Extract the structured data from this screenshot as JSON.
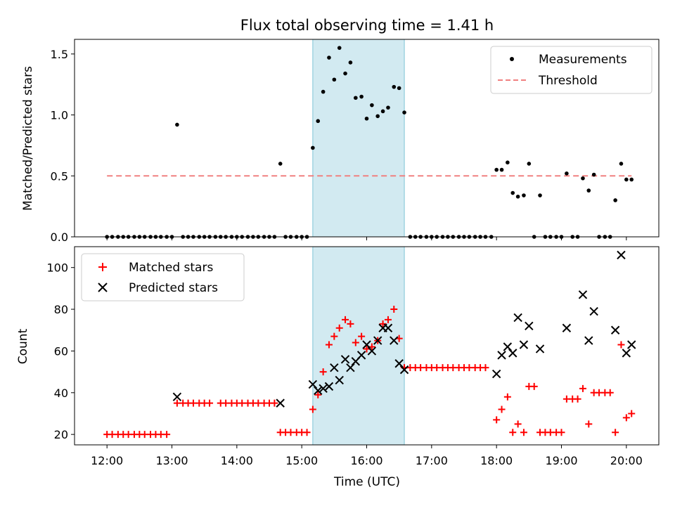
{
  "chart_data": {
    "type": "scatter",
    "title": "Flux total observing time = 1.41 h",
    "xlabel": "Time (UTC)",
    "x_unit": "hours UTC",
    "xlim": [
      11.5,
      20.5
    ],
    "x_ticks": [
      12,
      13,
      14,
      15,
      16,
      17,
      18,
      19,
      20
    ],
    "x_tick_labels": [
      "12:00",
      "13:00",
      "14:00",
      "15:00",
      "16:00",
      "17:00",
      "18:00",
      "19:00",
      "20:00"
    ],
    "shaded_region": {
      "x": [
        15.17,
        16.58
      ],
      "color": "#add8e6"
    },
    "panels": [
      {
        "ylabel": "Matched/Predicted stars",
        "ylim": [
          0,
          1.62
        ],
        "y_ticks": [
          0,
          0.5,
          1.0,
          1.5
        ],
        "y_tick_labels": [
          "0.0",
          "0.5",
          "1.0",
          "1.5"
        ],
        "legend_position": "top-right",
        "series": [
          {
            "name": "Measurements",
            "marker": "dot",
            "color": "#000000",
            "points": [
              [
                12,
                0
              ],
              [
                12.08,
                0
              ],
              [
                12.17,
                0
              ],
              [
                12.25,
                0
              ],
              [
                12.33,
                0
              ],
              [
                12.42,
                0
              ],
              [
                12.5,
                0
              ],
              [
                12.58,
                0
              ],
              [
                12.67,
                0
              ],
              [
                12.75,
                0
              ],
              [
                12.83,
                0
              ],
              [
                12.92,
                0
              ],
              [
                13,
                0
              ],
              [
                13.08,
                0.92
              ],
              [
                13.17,
                0
              ],
              [
                13.25,
                0
              ],
              [
                13.33,
                0
              ],
              [
                13.42,
                0
              ],
              [
                13.5,
                0
              ],
              [
                13.58,
                0
              ],
              [
                13.67,
                0
              ],
              [
                13.75,
                0
              ],
              [
                13.83,
                0
              ],
              [
                13.92,
                0
              ],
              [
                14,
                0
              ],
              [
                14.08,
                0
              ],
              [
                14.17,
                0
              ],
              [
                14.25,
                0
              ],
              [
                14.33,
                0
              ],
              [
                14.42,
                0
              ],
              [
                14.5,
                0
              ],
              [
                14.58,
                0
              ],
              [
                14.67,
                0.6
              ],
              [
                14.75,
                0
              ],
              [
                14.83,
                0
              ],
              [
                14.92,
                0
              ],
              [
                15,
                0
              ],
              [
                15.08,
                0
              ],
              [
                15.17,
                0.73
              ],
              [
                15.25,
                0.95
              ],
              [
                15.33,
                1.19
              ],
              [
                15.42,
                1.47
              ],
              [
                15.5,
                1.29
              ],
              [
                15.58,
                1.55
              ],
              [
                15.67,
                1.34
              ],
              [
                15.75,
                1.43
              ],
              [
                15.83,
                1.14
              ],
              [
                15.92,
                1.15
              ],
              [
                16,
                0.97
              ],
              [
                16.08,
                1.08
              ],
              [
                16.17,
                0.99
              ],
              [
                16.25,
                1.03
              ],
              [
                16.33,
                1.06
              ],
              [
                16.42,
                1.23
              ],
              [
                16.5,
                1.22
              ],
              [
                16.58,
                1.02
              ],
              [
                16.67,
                0
              ],
              [
                16.75,
                0
              ],
              [
                16.83,
                0
              ],
              [
                16.92,
                0
              ],
              [
                17,
                0
              ],
              [
                17.08,
                0
              ],
              [
                17.17,
                0
              ],
              [
                17.25,
                0
              ],
              [
                17.33,
                0
              ],
              [
                17.42,
                0
              ],
              [
                17.5,
                0
              ],
              [
                17.58,
                0
              ],
              [
                17.67,
                0
              ],
              [
                17.75,
                0
              ],
              [
                17.83,
                0
              ],
              [
                17.92,
                0
              ],
              [
                18,
                0.55
              ],
              [
                18.08,
                0.55
              ],
              [
                18.17,
                0.61
              ],
              [
                18.25,
                0.36
              ],
              [
                18.33,
                0.33
              ],
              [
                18.42,
                0.34
              ],
              [
                18.5,
                0.6
              ],
              [
                18.58,
                0
              ],
              [
                18.67,
                0.34
              ],
              [
                18.75,
                0
              ],
              [
                18.83,
                0
              ],
              [
                18.92,
                0
              ],
              [
                19,
                0
              ],
              [
                19.08,
                0.52
              ],
              [
                19.17,
                0
              ],
              [
                19.25,
                0
              ],
              [
                19.33,
                0.48
              ],
              [
                19.42,
                0.38
              ],
              [
                19.5,
                0.51
              ],
              [
                19.58,
                0
              ],
              [
                19.67,
                0
              ],
              [
                19.75,
                0
              ],
              [
                19.83,
                0.3
              ],
              [
                19.92,
                0.6
              ],
              [
                20,
                0.47
              ],
              [
                20.08,
                0.47
              ]
            ]
          },
          {
            "name": "Threshold",
            "marker": "dashed-line",
            "color": "#f08080",
            "points": [
              [
                12,
                0.5
              ],
              [
                20.08,
                0.5
              ]
            ]
          }
        ]
      },
      {
        "ylabel": "Count",
        "ylim": [
          15,
          110
        ],
        "y_ticks": [
          20,
          40,
          60,
          80,
          100
        ],
        "y_tick_labels": [
          "20",
          "40",
          "60",
          "80",
          "100"
        ],
        "legend_position": "top-left",
        "series": [
          {
            "name": "Matched stars",
            "marker": "plus",
            "color": "#ff0000",
            "points": [
              [
                12,
                20
              ],
              [
                12.08,
                20
              ],
              [
                12.17,
                20
              ],
              [
                12.25,
                20
              ],
              [
                12.33,
                20
              ],
              [
                12.42,
                20
              ],
              [
                12.5,
                20
              ],
              [
                12.58,
                20
              ],
              [
                12.67,
                20
              ],
              [
                12.75,
                20
              ],
              [
                12.83,
                20
              ],
              [
                12.92,
                20
              ],
              [
                13.08,
                35
              ],
              [
                13.17,
                35
              ],
              [
                13.25,
                35
              ],
              [
                13.33,
                35
              ],
              [
                13.42,
                35
              ],
              [
                13.5,
                35
              ],
              [
                13.58,
                35
              ],
              [
                13.75,
                35
              ],
              [
                13.83,
                35
              ],
              [
                13.92,
                35
              ],
              [
                14,
                35
              ],
              [
                14.08,
                35
              ],
              [
                14.17,
                35
              ],
              [
                14.25,
                35
              ],
              [
                14.33,
                35
              ],
              [
                14.42,
                35
              ],
              [
                14.5,
                35
              ],
              [
                14.58,
                35
              ],
              [
                14.67,
                21
              ],
              [
                14.75,
                21
              ],
              [
                14.83,
                21
              ],
              [
                14.92,
                21
              ],
              [
                15,
                21
              ],
              [
                15.08,
                21
              ],
              [
                15.17,
                32
              ],
              [
                15.25,
                39
              ],
              [
                15.33,
                50
              ],
              [
                15.42,
                63
              ],
              [
                15.5,
                67
              ],
              [
                15.58,
                71
              ],
              [
                15.67,
                75
              ],
              [
                15.75,
                73
              ],
              [
                15.83,
                64
              ],
              [
                15.92,
                67
              ],
              [
                16,
                61
              ],
              [
                16.08,
                62
              ],
              [
                16.17,
                65
              ],
              [
                16.25,
                73
              ],
              [
                16.33,
                75
              ],
              [
                16.42,
                80
              ],
              [
                16.5,
                66
              ],
              [
                16.58,
                52
              ],
              [
                16.67,
                52
              ],
              [
                16.75,
                52
              ],
              [
                16.83,
                52
              ],
              [
                16.92,
                52
              ],
              [
                17,
                52
              ],
              [
                17.08,
                52
              ],
              [
                17.17,
                52
              ],
              [
                17.25,
                52
              ],
              [
                17.33,
                52
              ],
              [
                17.42,
                52
              ],
              [
                17.5,
                52
              ],
              [
                17.58,
                52
              ],
              [
                17.67,
                52
              ],
              [
                17.75,
                52
              ],
              [
                17.83,
                52
              ],
              [
                18,
                27
              ],
              [
                18.08,
                32
              ],
              [
                18.17,
                38
              ],
              [
                18.25,
                21
              ],
              [
                18.33,
                25
              ],
              [
                18.42,
                21
              ],
              [
                18.5,
                43
              ],
              [
                18.58,
                43
              ],
              [
                18.67,
                21
              ],
              [
                18.75,
                21
              ],
              [
                18.83,
                21
              ],
              [
                18.92,
                21
              ],
              [
                19,
                21
              ],
              [
                19.08,
                37
              ],
              [
                19.17,
                37
              ],
              [
                19.25,
                37
              ],
              [
                19.33,
                42
              ],
              [
                19.42,
                25
              ],
              [
                19.5,
                40
              ],
              [
                19.58,
                40
              ],
              [
                19.67,
                40
              ],
              [
                19.75,
                40
              ],
              [
                19.83,
                21
              ],
              [
                19.92,
                63
              ],
              [
                20,
                28
              ],
              [
                20.08,
                30
              ]
            ]
          },
          {
            "name": "Predicted stars",
            "marker": "x",
            "color": "#000000",
            "points": [
              [
                13.08,
                38
              ],
              [
                14.67,
                35
              ],
              [
                15.17,
                44
              ],
              [
                15.25,
                41
              ],
              [
                15.33,
                42
              ],
              [
                15.42,
                43
              ],
              [
                15.5,
                52
              ],
              [
                15.58,
                46
              ],
              [
                15.67,
                56
              ],
              [
                15.75,
                52
              ],
              [
                15.83,
                55
              ],
              [
                15.92,
                58
              ],
              [
                16,
                63
              ],
              [
                16.08,
                60
              ],
              [
                16.17,
                65
              ],
              [
                16.25,
                71
              ],
              [
                16.33,
                71
              ],
              [
                16.42,
                65
              ],
              [
                16.5,
                54
              ],
              [
                16.58,
                51
              ],
              [
                18,
                49
              ],
              [
                18.08,
                58
              ],
              [
                18.17,
                62
              ],
              [
                18.25,
                59
              ],
              [
                18.33,
                76
              ],
              [
                18.42,
                63
              ],
              [
                18.5,
                72
              ],
              [
                18.67,
                61
              ],
              [
                19.08,
                71
              ],
              [
                19.33,
                87
              ],
              [
                19.42,
                65
              ],
              [
                19.5,
                79
              ],
              [
                19.83,
                70
              ],
              [
                19.92,
                106
              ],
              [
                20,
                59
              ],
              [
                20.08,
                63
              ]
            ]
          }
        ]
      }
    ]
  }
}
